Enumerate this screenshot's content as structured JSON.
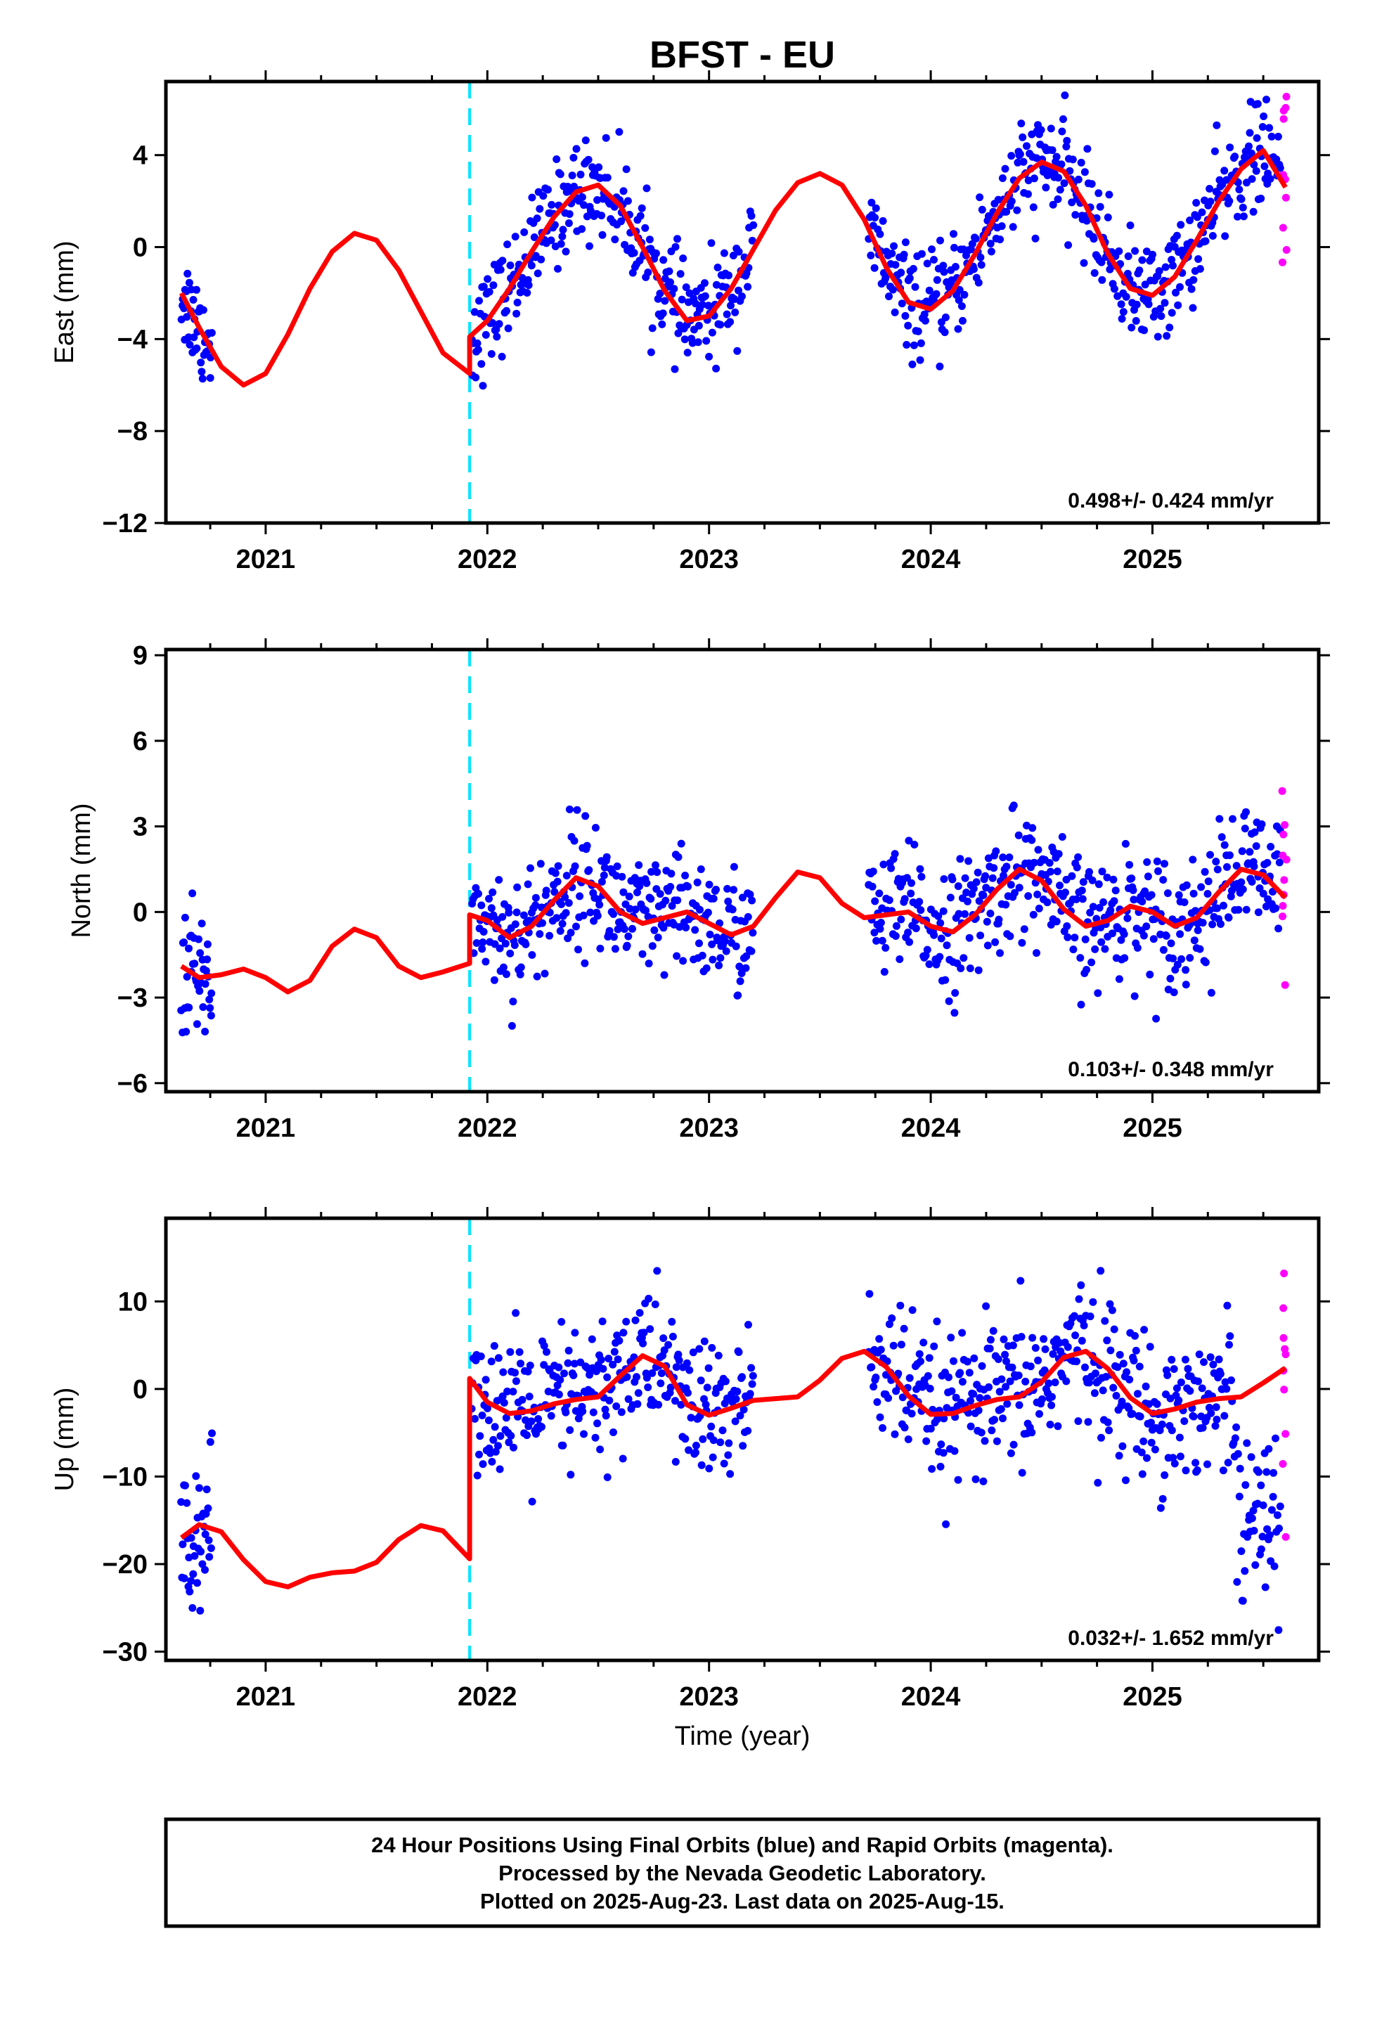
{
  "chart_data": {
    "type": "scatter",
    "title": "BFST - EU",
    "xlabel": "Time (year)",
    "xlim": [
      2020.55,
      2025.75
    ],
    "x_ticks": [
      2021,
      2022,
      2023,
      2024,
      2025
    ],
    "x_tick_labels": [
      "2021",
      "2022",
      "2023",
      "2024",
      "2025"
    ],
    "equipment_change_year": 2021.92,
    "legend": {
      "lines": [
        "24 Hour Positions Using Final Orbits (blue) and Rapid Orbits (magenta).",
        "Processed by the Nevada Geodetic Laboratory.",
        "Plotted on 2025-Aug-23. Last data on 2025-Aug-15."
      ],
      "placement": "bottom"
    },
    "colors": {
      "final_orbits": "#0000ff",
      "rapid_orbits": "#ff00ff",
      "model": "#ff0000",
      "equipment_change": "#00e5ff"
    },
    "panels": [
      {
        "component": "east",
        "ylabel": "East (mm)",
        "ylim": [
          -12,
          7.2
        ],
        "y_ticks": [
          -12,
          -8,
          -4,
          0,
          4
        ],
        "y_tick_labels": [
          "−12",
          "−8",
          "−4",
          "0",
          "4"
        ],
        "rate_label": "0.498+/- 0.424 mm/yr",
        "rate_mm_per_yr": 0.498,
        "rate_sigma_mm_per_yr": 0.424,
        "model": {
          "x": [
            2020.62,
            2020.7,
            2020.8,
            2020.9,
            2021.0,
            2021.1,
            2021.2,
            2021.3,
            2021.4,
            2021.5,
            2021.6,
            2021.7,
            2021.8,
            2021.92,
            2021.92,
            2022.0,
            2022.1,
            2022.2,
            2022.3,
            2022.4,
            2022.5,
            2022.6,
            2022.7,
            2022.8,
            2022.9,
            2023.0,
            2023.1,
            2023.2,
            2023.3,
            2023.4,
            2023.5,
            2023.6,
            2023.7,
            2023.8,
            2023.9,
            2024.0,
            2024.1,
            2024.2,
            2024.3,
            2024.4,
            2024.5,
            2024.6,
            2024.7,
            2024.8,
            2024.9,
            2025.0,
            2025.1,
            2025.2,
            2025.3,
            2025.4,
            2025.5,
            2025.6
          ],
          "y": [
            -2.0,
            -3.5,
            -5.2,
            -6.0,
            -5.5,
            -3.8,
            -1.8,
            -0.2,
            0.6,
            0.3,
            -1.0,
            -2.8,
            -4.6,
            -5.5,
            -3.9,
            -3.2,
            -1.8,
            -0.2,
            1.3,
            2.4,
            2.7,
            1.8,
            0.0,
            -1.9,
            -3.2,
            -3.0,
            -1.8,
            -0.1,
            1.6,
            2.8,
            3.2,
            2.7,
            1.2,
            -0.9,
            -2.4,
            -2.7,
            -1.9,
            -0.3,
            1.5,
            3.0,
            3.7,
            3.3,
            1.8,
            -0.3,
            -1.8,
            -2.1,
            -1.3,
            0.3,
            2.0,
            3.4,
            4.2,
            2.6
          ]
        }
      },
      {
        "component": "north",
        "ylabel": "North (mm)",
        "ylim": [
          -6.3,
          9.2
        ],
        "y_ticks": [
          -6,
          -3,
          0,
          3,
          6,
          9
        ],
        "y_tick_labels": [
          "−6",
          "−3",
          "0",
          "3",
          "6",
          "9"
        ],
        "rate_label": "0.103+/- 0.348 mm/yr",
        "rate_mm_per_yr": 0.103,
        "rate_sigma_mm_per_yr": 0.348,
        "model": {
          "x": [
            2020.62,
            2020.7,
            2020.8,
            2020.9,
            2021.0,
            2021.1,
            2021.2,
            2021.3,
            2021.4,
            2021.5,
            2021.6,
            2021.7,
            2021.8,
            2021.92,
            2021.92,
            2022.0,
            2022.1,
            2022.2,
            2022.3,
            2022.4,
            2022.5,
            2022.6,
            2022.7,
            2022.8,
            2022.9,
            2023.0,
            2023.1,
            2023.2,
            2023.3,
            2023.4,
            2023.5,
            2023.6,
            2023.7,
            2023.8,
            2023.9,
            2024.0,
            2024.1,
            2024.2,
            2024.3,
            2024.4,
            2024.5,
            2024.6,
            2024.7,
            2024.8,
            2024.9,
            2025.0,
            2025.1,
            2025.2,
            2025.3,
            2025.4,
            2025.5,
            2025.6
          ],
          "y": [
            -1.9,
            -2.3,
            -2.2,
            -2.0,
            -2.3,
            -2.8,
            -2.4,
            -1.2,
            -0.6,
            -0.9,
            -1.9,
            -2.3,
            -2.1,
            -1.8,
            -0.1,
            -0.3,
            -0.9,
            -0.5,
            0.4,
            1.2,
            0.9,
            0.0,
            -0.4,
            -0.2,
            0.0,
            -0.4,
            -0.8,
            -0.5,
            0.5,
            1.4,
            1.2,
            0.3,
            -0.2,
            -0.1,
            0.0,
            -0.5,
            -0.7,
            -0.1,
            0.8,
            1.5,
            1.1,
            0.1,
            -0.5,
            -0.3,
            0.2,
            0.0,
            -0.5,
            -0.2,
            0.7,
            1.5,
            1.3,
            0.5
          ]
        }
      },
      {
        "component": "up",
        "ylabel": "Up (mm)",
        "ylim": [
          -31,
          19.5
        ],
        "y_ticks": [
          -30,
          -20,
          -10,
          0,
          10
        ],
        "y_tick_labels": [
          "−30",
          "−20",
          "−10",
          "0",
          "10"
        ],
        "rate_label": "0.032+/- 1.652 mm/yr",
        "rate_mm_per_yr": 0.032,
        "rate_sigma_mm_per_yr": 1.652,
        "model": {
          "x": [
            2020.62,
            2020.7,
            2020.8,
            2020.9,
            2021.0,
            2021.1,
            2021.2,
            2021.3,
            2021.4,
            2021.5,
            2021.6,
            2021.7,
            2021.8,
            2021.92,
            2021.92,
            2022.0,
            2022.1,
            2022.2,
            2022.3,
            2022.4,
            2022.5,
            2022.6,
            2022.7,
            2022.8,
            2022.9,
            2023.0,
            2023.1,
            2023.2,
            2023.3,
            2023.4,
            2023.5,
            2023.6,
            2023.7,
            2023.8,
            2023.9,
            2024.0,
            2024.1,
            2024.2,
            2024.3,
            2024.4,
            2024.5,
            2024.6,
            2024.7,
            2024.8,
            2024.9,
            2025.0,
            2025.1,
            2025.2,
            2025.3,
            2025.4,
            2025.5,
            2025.6
          ],
          "y": [
            -17.0,
            -15.5,
            -16.3,
            -19.5,
            -22.0,
            -22.6,
            -21.5,
            -21.0,
            -20.8,
            -19.8,
            -17.2,
            -15.6,
            -16.2,
            -19.4,
            1.2,
            -1.5,
            -2.8,
            -2.5,
            -1.7,
            -1.2,
            -0.9,
            1.5,
            3.8,
            2.6,
            -1.8,
            -3.0,
            -2.2,
            -1.3,
            -1.1,
            -0.9,
            1.0,
            3.5,
            4.3,
            2.5,
            -0.8,
            -2.9,
            -2.8,
            -1.9,
            -1.2,
            -0.9,
            0.8,
            3.6,
            4.3,
            2.3,
            -1.0,
            -2.8,
            -2.3,
            -1.5,
            -1.1,
            -0.9,
            0.7,
            2.4
          ]
        }
      }
    ]
  }
}
